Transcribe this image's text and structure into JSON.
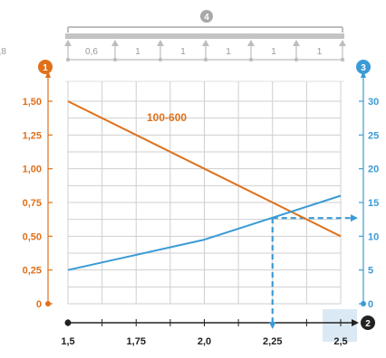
{
  "colors": {
    "orange": "#e0701a",
    "blue": "#3a9bd5",
    "grid": "#cfcfcf",
    "beam": "#bdbdbd",
    "badge_gray": "#a8a8a8",
    "highlight_box": "#dbe9f4",
    "axis_black": "#222222"
  },
  "badges": {
    "top": "4",
    "left": "1",
    "right": "3",
    "bottom": "2"
  },
  "beam_spans": [
    "0,6",
    "1",
    "1",
    "1",
    "1",
    "1",
    "0,8"
  ],
  "chart_data": {
    "type": "line",
    "title": "",
    "xlabel": "",
    "ylabel": "",
    "x_ticks": [
      "1,5",
      "1,75",
      "2,0",
      "2,25",
      "2,5"
    ],
    "xlim": [
      1.5,
      2.5
    ],
    "y_left_ticks": [
      "0",
      "0,25",
      "0,50",
      "0,75",
      "1,00",
      "1,25",
      "1,50"
    ],
    "ylim_left": [
      0,
      1.5
    ],
    "y_right_ticks": [
      "0",
      "5",
      "10",
      "15",
      "20",
      "25",
      "30"
    ],
    "ylim_right": [
      0,
      30
    ],
    "grid": true,
    "series": [
      {
        "name": "100-600",
        "axis": "left",
        "color": "#e0701a",
        "x": [
          1.5,
          2.5
        ],
        "y": [
          1.5,
          0.5
        ]
      },
      {
        "axis": "right",
        "color": "#3a9bd5",
        "x": [
          1.5,
          2.0,
          2.5
        ],
        "y": [
          5,
          9.5,
          16
        ]
      }
    ],
    "reading": {
      "x": 2.25,
      "y_right": 12.7,
      "color": "#3a9bd5",
      "style": "dashed"
    }
  }
}
